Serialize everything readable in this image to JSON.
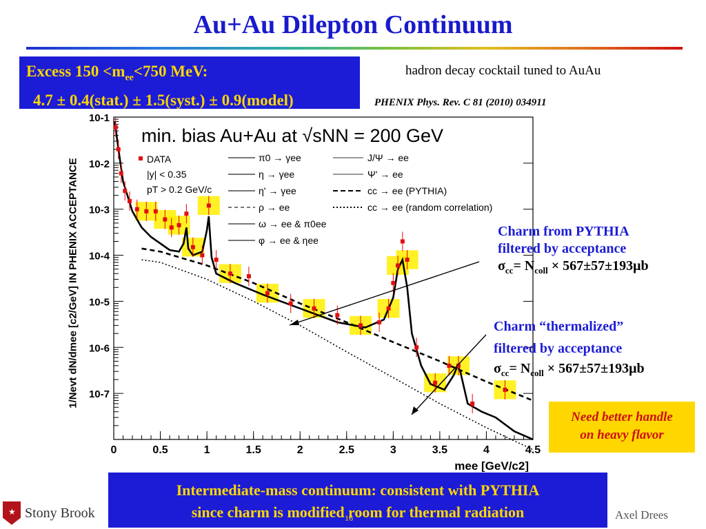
{
  "slide": {
    "title": "Au+Au Dilepton Continuum",
    "excess_line1_prefix": "Excess 150 <m",
    "excess_line1_sub": "ee",
    "excess_line1_suffix": "<750 MeV:",
    "excess_line2": "4.7 ± 0.4(stat.) ± 1.5(syst.) ± 0.9(model)",
    "cocktail_note": "hadron decay cocktail tuned to AuAu",
    "reference": "PHENIX  Phys. Rev. C 81 (2010) 034911",
    "charm_pythia_line1": "Charm from PYTHIA",
    "charm_pythia_line2": "filtered by acceptance",
    "charm_thermal_line1": "Charm “thermalized”",
    "charm_thermal_line2": "filtered by acceptance",
    "sigma_prefix": "σ",
    "sigma_sub": "cc",
    "sigma_mid": "= N",
    "sigma_sub2": "coll",
    "sigma_value": " × 567±57±193μb",
    "need_line1": "Need better handle",
    "need_line2": "on heavy flavor",
    "conclusion_line1": "Intermediate-mass continuum: consistent with PYTHIA",
    "conclusion_line2": "since charm is modified room for thermal radiation",
    "author": "Axel Drees",
    "logo_text": "Stony Brook",
    "page_number": "16"
  },
  "chart_data": {
    "type": "line",
    "title": "min. bias Au+Au at √sNN = 200 GeV",
    "xlabel": "mee [GeV/c2]",
    "ylabel": "1/Nevt dN/dmee [c2/GeV] IN PHENIX ACCEPTANCE",
    "xlim": [
      0,
      4.5
    ],
    "ylim_log10": [
      -8,
      -1
    ],
    "log_y": true,
    "x_ticks": [
      "0",
      "0.5",
      "1",
      "1.5",
      "2",
      "2.5",
      "3",
      "3.5",
      "4",
      "4.5"
    ],
    "y_ticks": [
      "10-1",
      "10-2",
      "10-3",
      "10-4",
      "10-5",
      "10-6",
      "10-7"
    ],
    "legend_data": [
      "DATA",
      "|y| < 0.35",
      "pT > 0.2 GeV/c"
    ],
    "legend_left": [
      "π0 → γee",
      "η → γee",
      "η' → γee",
      "ρ → ee",
      "ω → ee & π0ee",
      "φ → ee & ηee"
    ],
    "legend_right": [
      "J/Ψ → ee",
      "Ψ' → ee",
      "cc → ee (PYTHIA)",
      "cc → ee (random correlation)"
    ],
    "series": [
      {
        "name": "DATA",
        "x": [
          0.02,
          0.05,
          0.08,
          0.12,
          0.17,
          0.25,
          0.35,
          0.45,
          0.55,
          0.62,
          0.7,
          0.78,
          0.85,
          0.95,
          1.02,
          1.1,
          1.25,
          1.45,
          1.65,
          1.9,
          2.15,
          2.4,
          2.65,
          2.85,
          2.95,
          3.0,
          3.05,
          3.1,
          3.15,
          3.25,
          3.45,
          3.6,
          3.7,
          3.85,
          4.2
        ],
        "y": [
          0.06,
          0.02,
          0.006,
          0.0025,
          0.0015,
          0.001,
          0.0009,
          0.0009,
          0.0006,
          0.0004,
          0.00045,
          0.0008,
          0.00015,
          0.0001,
          0.0012,
          8e-05,
          4e-05,
          3.5e-05,
          1.5e-05,
          9e-06,
          7e-06,
          5e-06,
          3e-06,
          3.5e-06,
          7e-06,
          2.5e-05,
          6e-05,
          0.0002,
          8e-05,
          1e-06,
          1.7e-07,
          4e-07,
          4e-07,
          6e-08,
          1.2e-07
        ]
      },
      {
        "name": "cocktail sum",
        "x": [
          0.01,
          0.05,
          0.1,
          0.2,
          0.3,
          0.4,
          0.5,
          0.6,
          0.7,
          0.75,
          0.78,
          0.8,
          0.85,
          0.95,
          1.0,
          1.02,
          1.05,
          1.1,
          1.3,
          1.6,
          2.0,
          2.4,
          2.7,
          2.9,
          3.0,
          3.05,
          3.1,
          3.15,
          3.2,
          3.3,
          3.4,
          3.55,
          3.65,
          3.69,
          3.72,
          3.8,
          3.95,
          4.1,
          4.3,
          4.5
        ],
        "y": [
          0.08,
          0.02,
          0.004,
          0.0009,
          0.0004,
          0.00025,
          0.00018,
          0.00013,
          0.00012,
          0.00018,
          0.0004,
          0.00014,
          0.0001,
          0.00012,
          0.00035,
          0.0007,
          9e-05,
          4e-05,
          2.5e-05,
          1.4e-05,
          7e-06,
          3.5e-06,
          2.7e-06,
          4e-06,
          1.2e-05,
          5e-05,
          8e-05,
          2e-05,
          2e-06,
          4e-07,
          1.6e-07,
          1.2e-07,
          2.5e-07,
          4e-07,
          3e-07,
          6e-08,
          4e-08,
          3e-08,
          1.5e-08,
          1e-08
        ]
      },
      {
        "name": "cc → ee (PYTHIA)",
        "x": [
          0.3,
          0.5,
          1.0,
          1.5,
          2.0,
          2.5,
          3.0,
          3.5,
          4.0,
          4.5
        ],
        "y": [
          0.00014,
          0.00012,
          6e-05,
          2.5e-05,
          9e-06,
          3.5e-06,
          1.3e-06,
          5e-07,
          1.8e-07,
          7e-08
        ]
      },
      {
        "name": "cc → ee (random correlation)",
        "x": [
          0.3,
          0.5,
          1.0,
          1.5,
          2.0,
          2.5,
          3.0,
          3.5,
          4.0,
          4.5
        ],
        "y": [
          8e-05,
          7e-05,
          3e-05,
          1e-05,
          3e-06,
          8e-07,
          2.2e-07,
          6e-08,
          1.8e-08,
          6e-09
        ]
      }
    ],
    "legend_placement": "top",
    "grid": false
  }
}
